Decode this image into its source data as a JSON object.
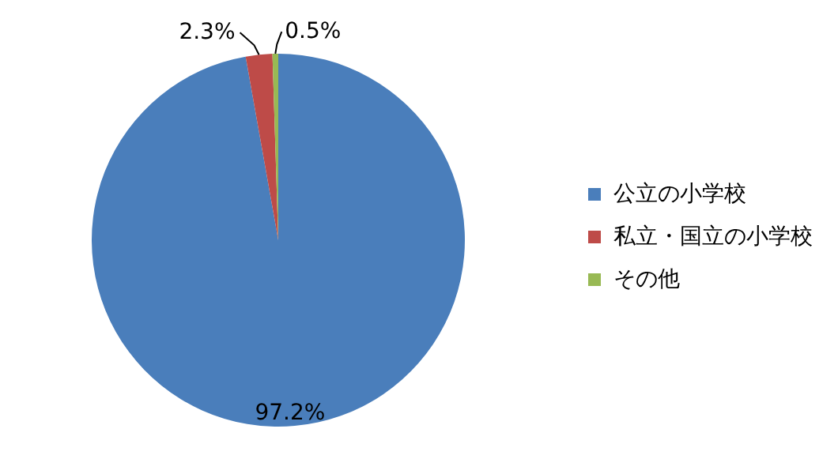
{
  "chart_data": {
    "type": "pie",
    "categories": [
      "公立の小学校",
      "私立・国立の小学校",
      "その他"
    ],
    "values": [
      97.2,
      2.3,
      0.5
    ],
    "value_labels": [
      "97.2%",
      "2.3%",
      "0.5%"
    ],
    "colors": [
      "#4a7ebb",
      "#be4b48",
      "#98b954"
    ],
    "legend": "right"
  }
}
